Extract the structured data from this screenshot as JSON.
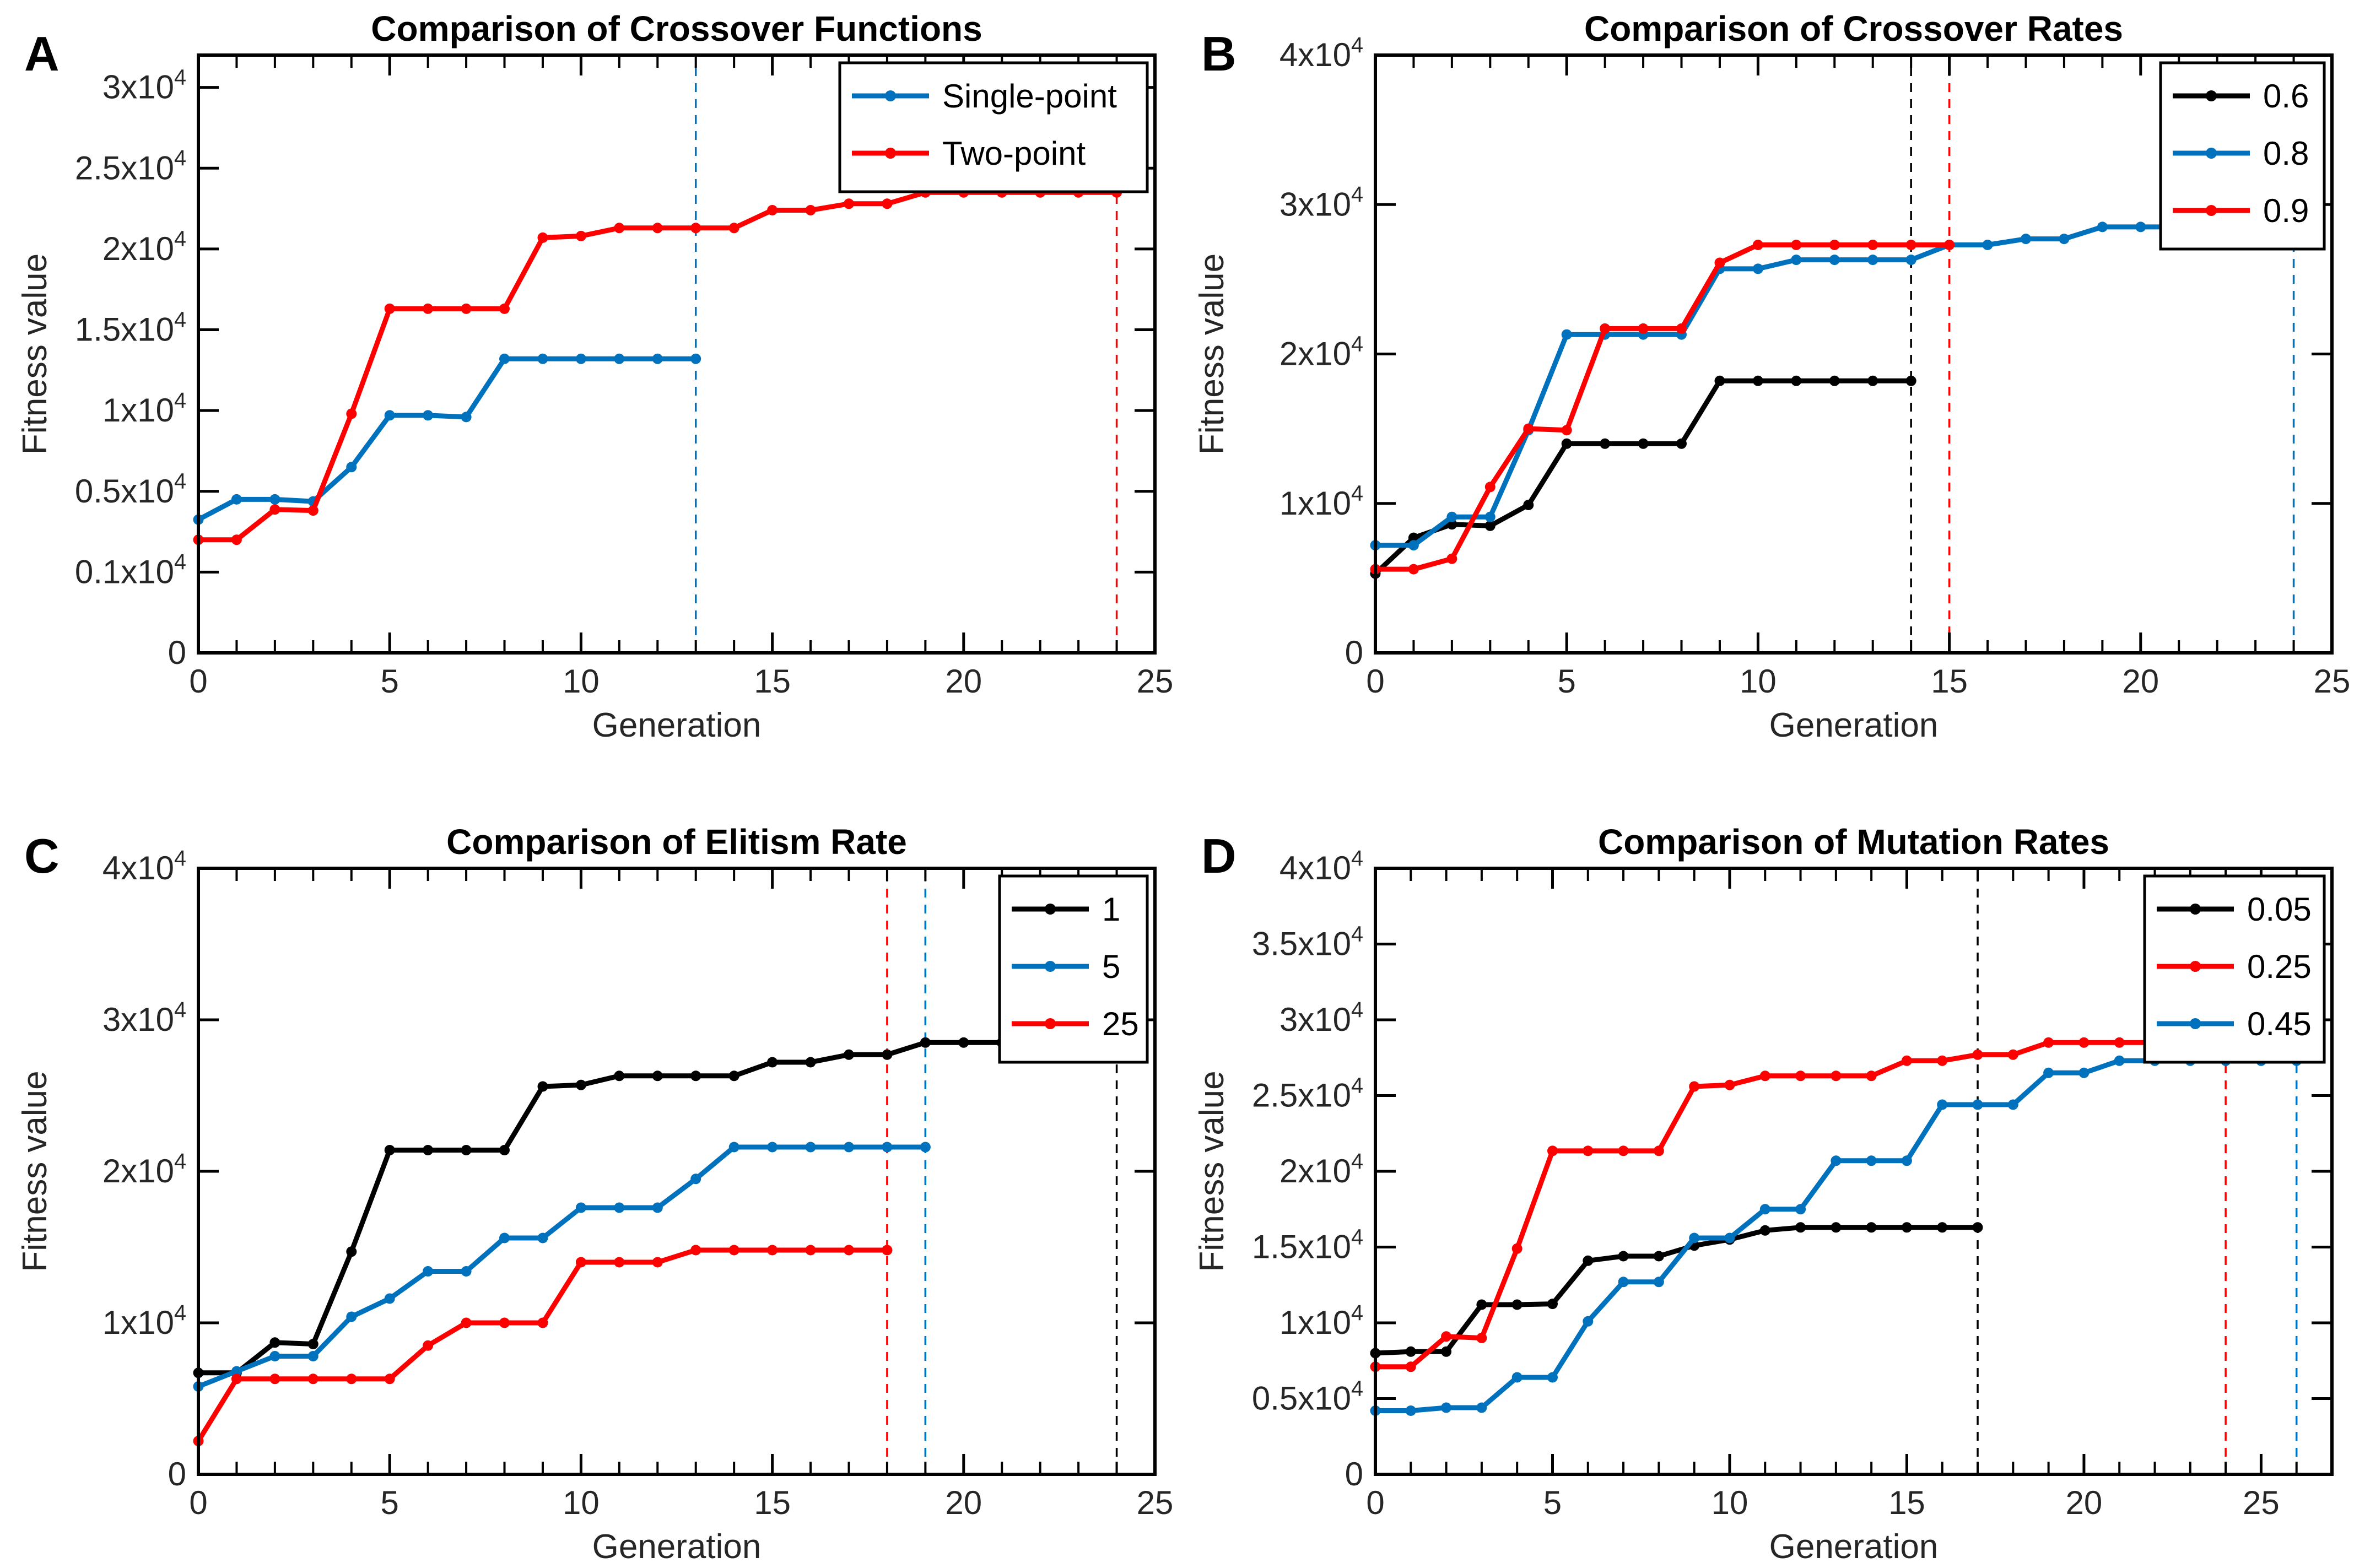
{
  "figure": {
    "background": "#ffffff",
    "xlabel": "Generation",
    "ylabel": "Fitness value",
    "axis_color": "#000000",
    "tick_label_color": "#262626",
    "colors": {
      "blue": "#0072BD",
      "red": "#FF0000",
      "black": "#000000"
    }
  },
  "chart_data": [
    {
      "panel_label": "A",
      "type": "line",
      "title": "Comparison of Crossover Functions",
      "xlabel": "Generation",
      "ylabel": "Fitness value",
      "x_range": [
        0,
        25
      ],
      "x_major_ticks": [
        0,
        5,
        10,
        15,
        20,
        25
      ],
      "x_minor_step": 1,
      "y_ticks": [
        0,
        1000,
        5000,
        10000,
        15000,
        20000,
        25000,
        30000
      ],
      "y_tick_labels": [
        "0",
        "0.1x10^4",
        "0.5x10^4",
        "1x10^4",
        "1.5x10^4",
        "2x10^4",
        "2.5x10^4",
        "3x10^4"
      ],
      "y_axis_note": "tick labels printed at equal spacing (non-linear scale)",
      "y_top_pad": 0.4,
      "grid": false,
      "legend": {
        "position": "top-right"
      },
      "series": [
        {
          "name": "Single-point",
          "color": "#0072BD",
          "x": [
            0,
            1,
            2,
            3,
            4,
            5,
            6,
            7,
            8,
            9,
            10,
            11,
            12,
            13
          ],
          "y": [
            3600,
            4600,
            4600,
            4500,
            6500,
            9700,
            9700,
            9600,
            13200,
            13200,
            13200,
            13200,
            13200,
            13200
          ]
        },
        {
          "name": "Two-point",
          "color": "#FF0000",
          "x": [
            0,
            1,
            2,
            3,
            4,
            5,
            6,
            7,
            8,
            9,
            10,
            11,
            12,
            13,
            14,
            15,
            16,
            17,
            18,
            19,
            20,
            21,
            22,
            23,
            24
          ],
          "y": [
            2600,
            2600,
            4100,
            4050,
            9800,
            16300,
            16300,
            16300,
            16300,
            20700,
            20800,
            21300,
            21300,
            21300,
            21300,
            22400,
            22400,
            22800,
            22800,
            23500,
            23500,
            23500,
            23500,
            23500,
            23500
          ]
        }
      ],
      "dashed_vlines": [
        {
          "x": 13,
          "color": "#0072BD"
        },
        {
          "x": 24,
          "color": "#FF0000"
        }
      ]
    },
    {
      "panel_label": "B",
      "type": "line",
      "title": "Comparison of Crossover Rates",
      "xlabel": "Generation",
      "ylabel": "Fitness value",
      "x_range": [
        0,
        25
      ],
      "x_major_ticks": [
        0,
        5,
        10,
        15,
        20,
        25
      ],
      "x_minor_step": 1,
      "y_ticks": [
        0,
        10000,
        20000,
        30000,
        40000
      ],
      "y_tick_labels": [
        "0",
        "1x10^4",
        "2x10^4",
        "3x10^4",
        "4x10^4"
      ],
      "y_top_pad": 0,
      "grid": false,
      "legend": {
        "position": "top-right"
      },
      "series": [
        {
          "name": "0.6",
          "color": "#000000",
          "x": [
            0,
            1,
            2,
            3,
            4,
            5,
            6,
            7,
            8,
            9,
            10,
            11,
            12,
            13,
            14
          ],
          "y": [
            5300,
            7700,
            8600,
            8500,
            9900,
            14000,
            14000,
            14000,
            14000,
            18200,
            18200,
            18200,
            18200,
            18200,
            18200
          ]
        },
        {
          "name": "0.8",
          "color": "#0072BD",
          "x": [
            0,
            1,
            2,
            3,
            4,
            5,
            6,
            7,
            8,
            9,
            10,
            11,
            12,
            13,
            14,
            15,
            16,
            17,
            18,
            19,
            20,
            21,
            22,
            23,
            24
          ],
          "y": [
            7200,
            7200,
            9100,
            9100,
            14900,
            21300,
            21300,
            21300,
            21300,
            25700,
            25700,
            26300,
            26300,
            26300,
            26300,
            27300,
            27300,
            27700,
            27700,
            28500,
            28500,
            28500,
            28500,
            28500,
            28500
          ]
        },
        {
          "name": "0.9",
          "color": "#FF0000",
          "x": [
            0,
            1,
            2,
            3,
            4,
            5,
            6,
            7,
            8,
            9,
            10,
            11,
            12,
            13,
            14,
            15
          ],
          "y": [
            5600,
            5600,
            6300,
            11100,
            15000,
            14900,
            21700,
            21700,
            21700,
            26100,
            27300,
            27300,
            27300,
            27300,
            27300,
            27300
          ]
        }
      ],
      "dashed_vlines": [
        {
          "x": 14,
          "color": "#000000"
        },
        {
          "x": 15,
          "color": "#FF0000"
        },
        {
          "x": 24,
          "color": "#0072BD"
        }
      ]
    },
    {
      "panel_label": "C",
      "type": "line",
      "title": "Comparison of Elitism Rate",
      "xlabel": "Generation",
      "ylabel": "Fitness value",
      "x_range": [
        0,
        25
      ],
      "x_major_ticks": [
        0,
        5,
        10,
        15,
        20,
        25
      ],
      "x_minor_step": 1,
      "y_ticks": [
        0,
        10000,
        20000,
        30000,
        40000
      ],
      "y_tick_labels": [
        "0",
        "1x10^4",
        "2x10^4",
        "3x10^4",
        "4x10^4"
      ],
      "y_top_pad": 0,
      "grid": false,
      "legend": {
        "position": "top-right"
      },
      "series": [
        {
          "name": "1",
          "color": "#000000",
          "x": [
            0,
            1,
            2,
            3,
            4,
            5,
            6,
            7,
            8,
            9,
            10,
            11,
            12,
            13,
            14,
            15,
            16,
            17,
            18,
            19,
            20,
            21,
            22,
            23,
            24
          ],
          "y": [
            6700,
            6700,
            8700,
            8600,
            14700,
            21400,
            21400,
            21400,
            21400,
            25600,
            25700,
            26300,
            26300,
            26300,
            26300,
            27200,
            27200,
            27700,
            27700,
            28500,
            28500,
            28500,
            28500,
            28500,
            28500
          ]
        },
        {
          "name": "5",
          "color": "#0072BD",
          "x": [
            0,
            1,
            2,
            3,
            4,
            5,
            6,
            7,
            8,
            9,
            10,
            11,
            12,
            13,
            14,
            15,
            16,
            17,
            18,
            19
          ],
          "y": [
            5800,
            6800,
            7800,
            7800,
            10400,
            11600,
            13400,
            13400,
            15600,
            15600,
            17600,
            17600,
            17600,
            19500,
            21600,
            21600,
            21600,
            21600,
            21600,
            21600
          ]
        },
        {
          "name": "25",
          "color": "#FF0000",
          "x": [
            0,
            1,
            2,
            3,
            4,
            5,
            6,
            7,
            8,
            9,
            10,
            11,
            12,
            13,
            14,
            15,
            16,
            17,
            18
          ],
          "y": [
            2200,
            6300,
            6300,
            6300,
            6300,
            6300,
            8500,
            10000,
            10000,
            10000,
            14000,
            14000,
            14000,
            14800,
            14800,
            14800,
            14800,
            14800,
            14800
          ]
        }
      ],
      "dashed_vlines": [
        {
          "x": 18,
          "color": "#FF0000"
        },
        {
          "x": 19,
          "color": "#0072BD"
        },
        {
          "x": 24,
          "color": "#000000"
        }
      ]
    },
    {
      "panel_label": "D",
      "type": "line",
      "title": "Comparison of Mutation Rates",
      "xlabel": "Generation",
      "ylabel": "Fitness value",
      "x_range": [
        0,
        27
      ],
      "x_major_ticks": [
        0,
        5,
        10,
        15,
        20,
        25
      ],
      "x_minor_step": 1,
      "y_ticks": [
        0,
        5000,
        10000,
        15000,
        20000,
        25000,
        30000,
        35000,
        40000
      ],
      "y_tick_labels": [
        "0",
        "0.5x10^4",
        "1x10^4",
        "1.5x10^4",
        "2x10^4",
        "2.5x10^4",
        "3x10^4",
        "3.5x10^4",
        "4x10^4"
      ],
      "y_top_pad": 0,
      "grid": false,
      "legend": {
        "position": "top-right"
      },
      "series": [
        {
          "name": "0.05",
          "color": "#000000",
          "x": [
            0,
            1,
            2,
            3,
            4,
            5,
            6,
            7,
            8,
            9,
            10,
            11,
            12,
            13,
            14,
            15,
            16,
            17
          ],
          "y": [
            8000,
            8100,
            8100,
            11200,
            11200,
            11250,
            14100,
            14400,
            14400,
            15100,
            15500,
            16100,
            16300,
            16300,
            16300,
            16300,
            16300,
            16300
          ]
        },
        {
          "name": "0.25",
          "color": "#FF0000",
          "x": [
            0,
            1,
            2,
            3,
            4,
            5,
            6,
            7,
            8,
            9,
            10,
            11,
            12,
            13,
            14,
            15,
            16,
            17,
            18,
            19,
            20,
            21,
            22,
            23,
            24
          ],
          "y": [
            7100,
            7100,
            9100,
            9000,
            14900,
            21350,
            21350,
            21350,
            21350,
            25600,
            25700,
            26300,
            26300,
            26300,
            26300,
            27300,
            27300,
            27700,
            27700,
            28500,
            28500,
            28500,
            28500,
            28500,
            28500
          ]
        },
        {
          "name": "0.45",
          "color": "#0072BD",
          "x": [
            0,
            1,
            2,
            3,
            4,
            5,
            6,
            7,
            8,
            9,
            10,
            11,
            12,
            13,
            14,
            15,
            16,
            17,
            18,
            19,
            20,
            21,
            22,
            23,
            24,
            25,
            26
          ],
          "y": [
            4200,
            4200,
            4400,
            4400,
            6400,
            6400,
            10100,
            12700,
            12700,
            15600,
            15600,
            17500,
            17500,
            20700,
            20700,
            20700,
            24400,
            24400,
            24400,
            26500,
            26500,
            27300,
            27300,
            27300,
            27300,
            27300,
            27300
          ]
        }
      ],
      "dashed_vlines": [
        {
          "x": 17,
          "color": "#000000"
        },
        {
          "x": 24,
          "color": "#FF0000"
        },
        {
          "x": 26,
          "color": "#0072BD"
        }
      ]
    }
  ]
}
